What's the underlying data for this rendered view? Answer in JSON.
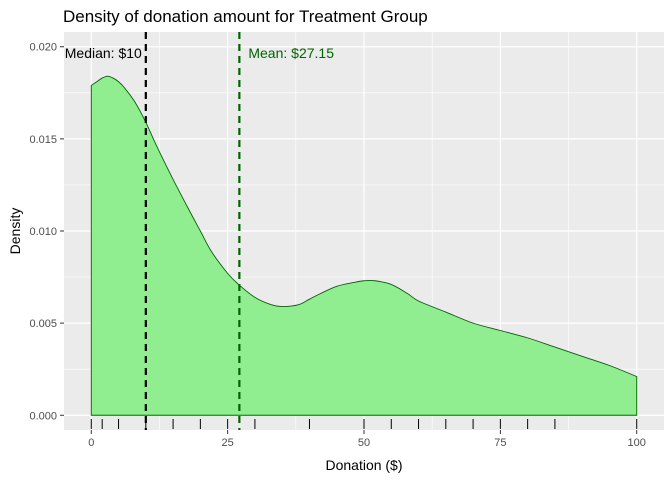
{
  "chart_data": {
    "type": "area",
    "title": "Density of donation amount for Treatment Group",
    "xlabel": "Donation ($)",
    "ylabel": "Density",
    "xlim": [
      -5,
      105
    ],
    "ylim": [
      -0.0008,
      0.0208
    ],
    "x_ticks": [
      0,
      25,
      50,
      75,
      100
    ],
    "x_tick_labels": [
      "0",
      "25",
      "50",
      "75",
      "100"
    ],
    "y_ticks": [
      0.0,
      0.005,
      0.01,
      0.015,
      0.02
    ],
    "y_tick_labels": [
      "0.000",
      "0.005",
      "0.010",
      "0.015",
      "0.020"
    ],
    "grid": true,
    "legend": "none",
    "fill_color": "#90EE90",
    "line_color": "#006400",
    "panel_color": "#EBEBEB",
    "series": [
      {
        "x": [
          0,
          1,
          2,
          3,
          4,
          5,
          6,
          8,
          10,
          12,
          15,
          18,
          20,
          22,
          25,
          27,
          30,
          33,
          35,
          38,
          40,
          42,
          45,
          48,
          50,
          52,
          55,
          58,
          60,
          65,
          70,
          75,
          80,
          85,
          90,
          95,
          100
        ],
        "y": [
          0.0179,
          0.0181,
          0.0183,
          0.0184,
          0.0183,
          0.0181,
          0.0178,
          0.017,
          0.0159,
          0.0146,
          0.0128,
          0.0111,
          0.01,
          0.0089,
          0.0077,
          0.0071,
          0.0064,
          0.006,
          0.0059,
          0.006,
          0.0063,
          0.0066,
          0.007,
          0.0072,
          0.0073,
          0.0073,
          0.0071,
          0.0066,
          0.0062,
          0.0056,
          0.005,
          0.0046,
          0.0042,
          0.0037,
          0.0032,
          0.0027,
          0.0021
        ]
      }
    ],
    "rug_x": [
      0,
      2,
      5,
      10,
      15,
      20,
      25,
      30,
      40,
      50,
      55,
      60,
      65,
      70,
      75,
      80,
      85,
      100
    ],
    "reference_lines": [
      {
        "x": 10,
        "label": "Median: $10",
        "color": "#000000"
      },
      {
        "x": 27.15,
        "label": "Mean: $27.15",
        "color": "#006400"
      }
    ]
  }
}
